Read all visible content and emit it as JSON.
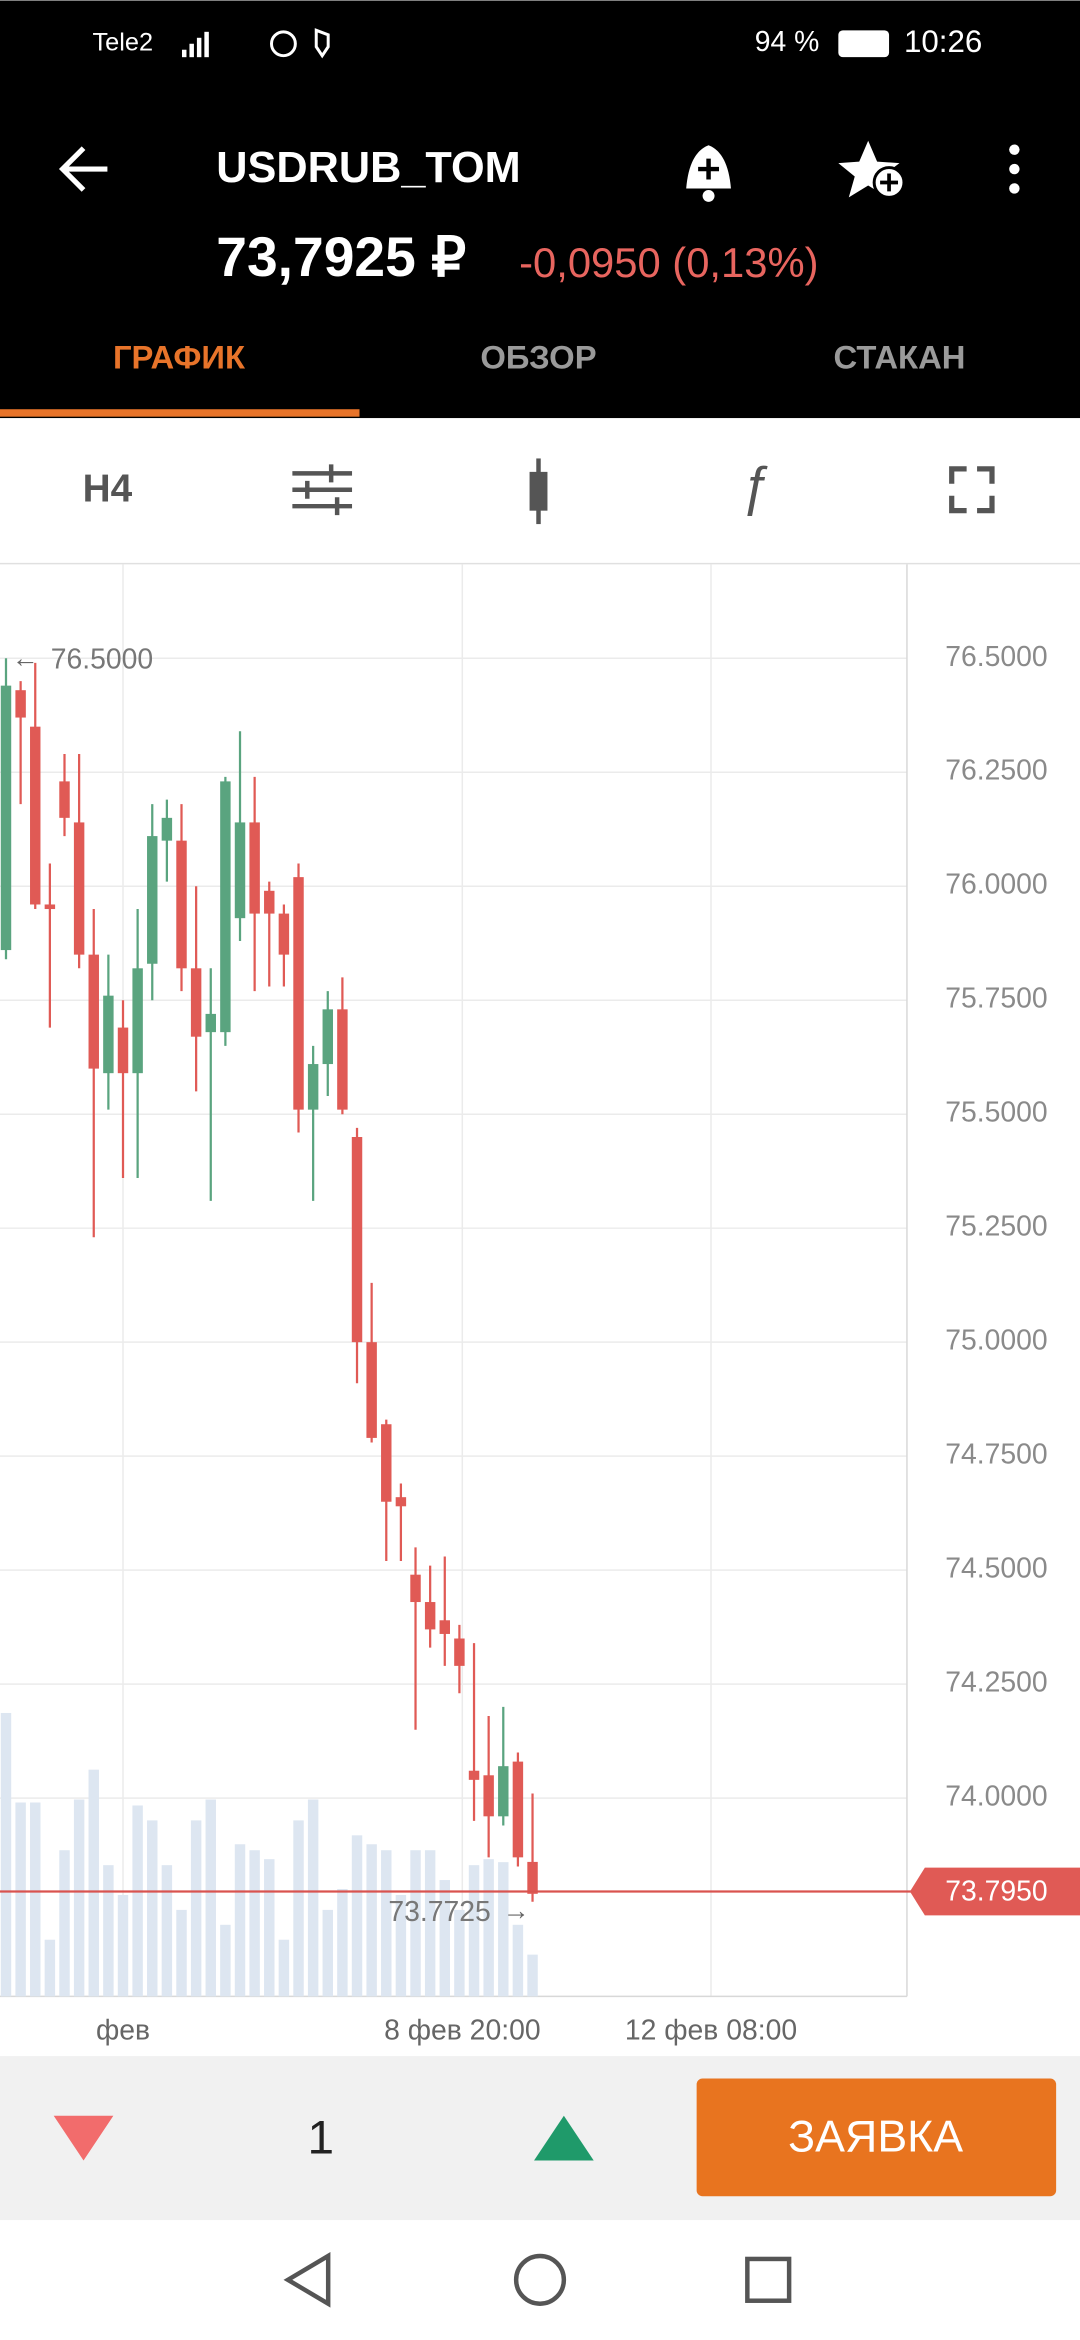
{
  "status_bar": {
    "carrier": "Tele2",
    "battery": "94 %",
    "time": "10:26"
  },
  "header": {
    "title": "USDRUB_TOM",
    "price": "73,7925 ₽",
    "change": "-0,0950 (0,13%)"
  },
  "tabs": [
    "ГРАФИК",
    "ОБЗОР",
    "СТАКАН"
  ],
  "toolbar": {
    "interval": "H4"
  },
  "chart_data": {
    "type": "candlestick",
    "up_color": "#5aa47f",
    "down_color": "#e05a55",
    "volume_color": "#dde6f1",
    "open": [
      75.86,
      76.43,
      76.35,
      75.96,
      76.23,
      76.14,
      75.85,
      75.59,
      75.69,
      75.59,
      75.83,
      76.1,
      76.1,
      75.82,
      75.68,
      75.68,
      75.93,
      76.14,
      75.99,
      75.94,
      76.02,
      75.51,
      75.61,
      75.73,
      75.45,
      75.0,
      74.82,
      74.66,
      74.49,
      74.43,
      74.39,
      74.35,
      74.06,
      74.05,
      73.96,
      74.08,
      73.86
    ],
    "high": [
      76.5,
      76.45,
      76.49,
      76.05,
      76.29,
      76.29,
      75.95,
      75.85,
      75.75,
      75.95,
      76.18,
      76.19,
      76.18,
      76.0,
      75.82,
      76.24,
      76.34,
      76.24,
      76.01,
      75.96,
      76.05,
      75.65,
      75.77,
      75.8,
      75.47,
      75.13,
      74.83,
      74.69,
      74.55,
      74.51,
      74.53,
      74.38,
      74.34,
      74.18,
      74.2,
      74.1,
      74.01
    ],
    "low": [
      75.84,
      76.18,
      75.95,
      75.69,
      76.11,
      75.82,
      75.23,
      75.51,
      75.36,
      75.36,
      75.75,
      76.01,
      75.77,
      75.55,
      75.31,
      75.65,
      75.88,
      75.77,
      75.78,
      75.78,
      75.46,
      75.31,
      75.54,
      75.5,
      74.91,
      74.78,
      74.52,
      74.52,
      74.15,
      74.33,
      74.29,
      74.23,
      73.95,
      73.87,
      73.94,
      73.85,
      73.7725
    ],
    "close": [
      76.44,
      76.37,
      75.96,
      75.95,
      76.15,
      75.85,
      75.6,
      75.76,
      75.59,
      75.82,
      76.11,
      76.15,
      75.82,
      75.67,
      75.72,
      76.23,
      76.14,
      75.94,
      75.94,
      75.85,
      75.51,
      75.61,
      75.73,
      75.51,
      75.0,
      74.79,
      74.65,
      74.64,
      74.43,
      74.37,
      74.36,
      74.29,
      74.04,
      73.96,
      74.07,
      73.87,
      73.79
    ],
    "volumes": [
      95,
      65,
      65,
      19,
      49,
      66,
      76,
      44,
      34,
      64,
      59,
      44,
      29,
      59,
      66,
      24,
      51,
      49,
      46,
      19,
      59,
      66,
      29,
      36,
      54,
      51,
      49,
      34,
      49,
      49,
      39,
      29,
      44,
      46,
      45,
      24,
      14
    ],
    "y2lim": [
      0,
      100
    ],
    "xlim": [
      -0.41,
      61.6
    ],
    "xticks": [
      {
        "value": 8,
        "label": "фев"
      },
      {
        "value": 31.2,
        "label": "8 фев 20:00"
      },
      {
        "value": 48.2,
        "label": "12 фев 08:00"
      }
    ],
    "ylim": [
      73.565,
      76.706
    ],
    "yticks": [
      {
        "value": 74.0,
        "label": "74.0000"
      },
      {
        "value": 74.25,
        "label": "74.2500"
      },
      {
        "value": 74.5,
        "label": "74.5000"
      },
      {
        "value": 74.75,
        "label": "74.7500"
      },
      {
        "value": 75.0,
        "label": "75.0000"
      },
      {
        "value": 75.25,
        "label": "75.2500"
      },
      {
        "value": 75.5,
        "label": "75.5000"
      },
      {
        "value": 75.75,
        "label": "75.7500"
      },
      {
        "value": 76.0,
        "label": "76.0000"
      },
      {
        "value": 76.25,
        "label": "76.2500"
      },
      {
        "value": 76.5,
        "label": "76.5000"
      }
    ],
    "grid": true,
    "last_price": {
      "value": 73.795,
      "label": "73.7950"
    },
    "max_marker": {
      "value": 76.5,
      "label": "76.5000"
    },
    "min_marker": {
      "value": 73.7725,
      "label": "73.7725"
    }
  },
  "order_bar": {
    "quantity": "1",
    "button": "ЗАЯВКА"
  }
}
